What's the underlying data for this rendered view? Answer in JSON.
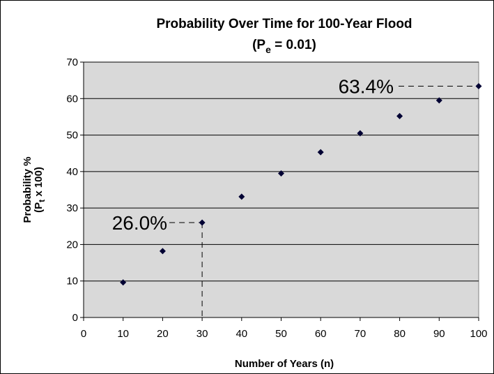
{
  "chart_data": {
    "type": "scatter",
    "title_line1": "Probability Over Time for 100-Year Flood",
    "title_line2_prefix": "(P",
    "title_line2_sub": "e",
    "title_line2_suffix": " = 0.01)",
    "xlabel": "Number of Years (n)",
    "ylabel_line1": "Probability %",
    "ylabel_line2_prefix": "(P",
    "ylabel_line2_sub": "t",
    "ylabel_line2_suffix": " x 100)",
    "xlim": [
      0,
      100
    ],
    "ylim": [
      0,
      70
    ],
    "x_ticks": [
      "0",
      "10",
      "20",
      "30",
      "40",
      "50",
      "60",
      "70",
      "80",
      "90",
      "100"
    ],
    "y_ticks": [
      "0",
      "10",
      "20",
      "30",
      "40",
      "50",
      "60",
      "70"
    ],
    "grid": "horizontal",
    "plot_background": "#d9d9d9",
    "marker_color": "#000033",
    "x": [
      10,
      20,
      30,
      40,
      50,
      60,
      70,
      80,
      90,
      100
    ],
    "y": [
      9.6,
      18.2,
      26.0,
      33.1,
      39.5,
      45.3,
      50.5,
      55.2,
      59.5,
      63.4
    ],
    "annotations": [
      {
        "text": "26.0%",
        "x": 30,
        "y": 26.0
      },
      {
        "text": "63.4%",
        "x": 100,
        "y": 63.4
      }
    ]
  }
}
